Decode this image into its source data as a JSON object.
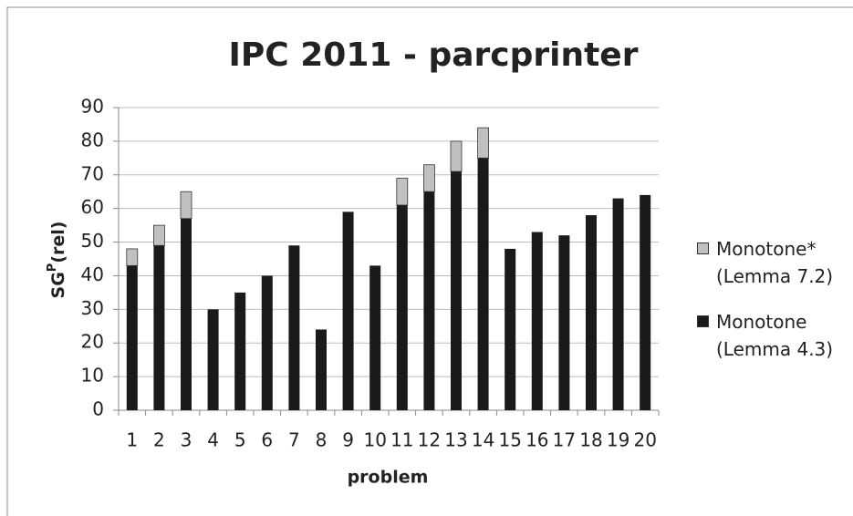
{
  "chart_data": {
    "type": "stacked_bar",
    "title": "IPC 2011 - parcprinter",
    "x_label": "problem",
    "y_label": [
      "SG",
      "P",
      "(rel)"
    ],
    "categories": [
      "1",
      "2",
      "3",
      "4",
      "5",
      "6",
      "7",
      "8",
      "9",
      "10",
      "11",
      "12",
      "13",
      "14",
      "15",
      "16",
      "17",
      "18",
      "19",
      "20"
    ],
    "series": [
      {
        "name": "Monotone (Lemma 4.3)",
        "color": "#1a1a1a",
        "values": [
          43,
          49,
          57,
          30,
          35,
          40,
          49,
          24,
          59,
          43,
          61,
          65,
          71,
          75,
          48,
          53,
          52,
          58,
          63,
          64
        ]
      },
      {
        "name": "Monotone* (Lemma 7.2)",
        "color": "#c0c0c0",
        "values": [
          5,
          6,
          8,
          0,
          0,
          0,
          0,
          0,
          0,
          0,
          8,
          8,
          9,
          9,
          0,
          0,
          0,
          0,
          0,
          0
        ]
      }
    ],
    "ylim": [
      0,
      90
    ],
    "yticks": [
      0,
      10,
      20,
      30,
      40,
      50,
      60,
      70,
      80,
      90
    ],
    "grid": true,
    "legend": "right"
  }
}
